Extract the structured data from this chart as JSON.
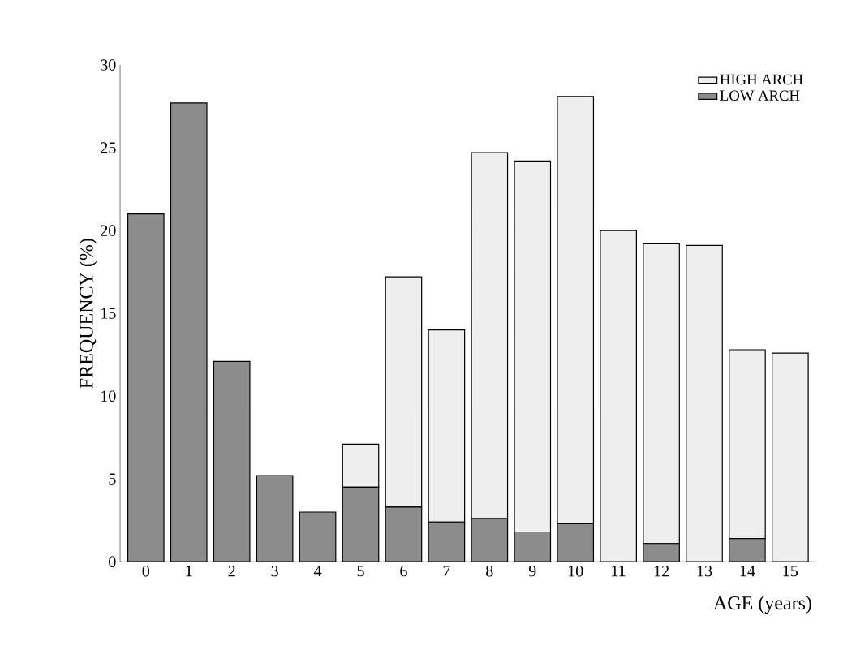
{
  "chart_data": {
    "type": "bar",
    "xlabel": "AGE (years)",
    "ylabel": "FREQUENCY (%)",
    "categories": [
      "0",
      "1",
      "2",
      "3",
      "4",
      "5",
      "6",
      "7",
      "8",
      "9",
      "10",
      "11",
      "12",
      "13",
      "14",
      "15"
    ],
    "stacked": true,
    "series": [
      {
        "name": "LOW ARCH",
        "color": "#8c8c8c",
        "values": [
          21.0,
          27.7,
          12.1,
          5.2,
          3.0,
          4.5,
          3.3,
          2.4,
          2.6,
          1.8,
          2.3,
          0,
          1.1,
          0,
          1.4,
          0
        ]
      },
      {
        "name": "HIGH ARCH",
        "color": "#eeeeee",
        "values": [
          0,
          0,
          0,
          0,
          0,
          2.6,
          13.9,
          11.6,
          22.1,
          22.4,
          25.8,
          20.0,
          18.1,
          19.1,
          11.4,
          12.6
        ]
      }
    ],
    "ylim": [
      0,
      30
    ],
    "yticks": [
      0,
      5,
      10,
      15,
      20,
      25,
      30
    ],
    "legend": "top right",
    "grid": false
  }
}
